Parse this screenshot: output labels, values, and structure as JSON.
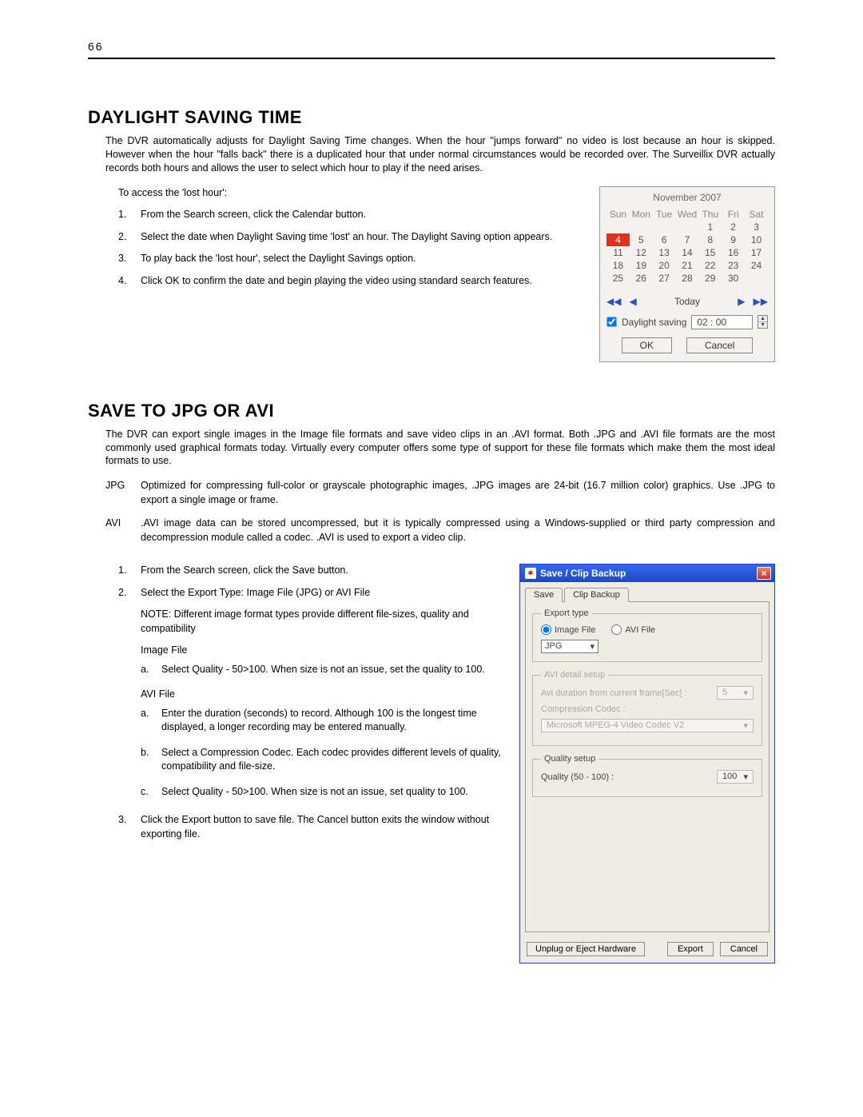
{
  "page_number": "66",
  "section1": {
    "title": "DAYLIGHT SAVING TIME",
    "intro": "The DVR automatically adjusts for Daylight Saving Time changes.  When the hour \"jumps forward\" no video is lost because an hour is skipped.  However when the hour \"falls back\" there is a duplicated hour that under normal circumstances would be recorded over.  The Surveillix DVR actually records both hours and allows the user to select which hour to play if the need arises.",
    "lead": "To access the 'lost hour':",
    "steps": [
      "From the Search screen, click the Calendar button.",
      "Select the date when Daylight Saving time 'lost' an hour. The Daylight Saving option appears.",
      "To play back the 'lost hour', select the Daylight Savings option.",
      "Click OK to confirm the date and begin playing the video using standard search features."
    ]
  },
  "calendar": {
    "month_label": "November 2007",
    "day_headers": [
      "Sun",
      "Mon",
      "Tue",
      "Wed",
      "Thu",
      "Fri",
      "Sat"
    ],
    "rows": [
      [
        "",
        "",
        "",
        "",
        "1",
        "2",
        "3"
      ],
      [
        "4",
        "5",
        "6",
        "7",
        "8",
        "9",
        "10"
      ],
      [
        "11",
        "12",
        "13",
        "14",
        "15",
        "16",
        "17"
      ],
      [
        "18",
        "19",
        "20",
        "21",
        "22",
        "23",
        "24"
      ],
      [
        "25",
        "26",
        "27",
        "28",
        "29",
        "30",
        ""
      ]
    ],
    "selected": "4",
    "today_label": "Today",
    "nav_first": "◀◀",
    "nav_prev": "◀",
    "nav_next": "▶",
    "nav_last": "▶▶",
    "dst_checkbox_label": "Daylight saving",
    "dst_checked": true,
    "time_value": "02 : 00",
    "ok": "OK",
    "cancel": "Cancel",
    "colors": {
      "panel_bg": "#f4f2ee",
      "selected_bg": "#e03020",
      "selected_fg": "#ffffff",
      "nav_color": "#2a4fbf"
    }
  },
  "section2": {
    "title": "SAVE TO JPG OR AVI",
    "intro": "The DVR can export single images in the Image file formats and save video clips in an .AVI format.  Both .JPG and .AVI file formats are the most commonly used graphical formats today.  Virtually every computer offers some type of support for these file formats which make them the most ideal formats to use.",
    "terms": [
      {
        "term": "JPG",
        "desc": "Optimized for compressing full-color or grayscale photographic images, .JPG images are 24-bit (16.7 million color) graphics. Use .JPG to export a single image or frame."
      },
      {
        "term": "AVI",
        "desc": ".AVI image data can be stored uncompressed, but it is typically compressed using a Windows-supplied or third party compression and decompression module called a codec.  .AVI is used to export a video clip."
      }
    ],
    "steps12": [
      "From the Search screen, click  the Save button.",
      "Select the Export Type: Image File (JPG) or AVI File"
    ],
    "note": "NOTE: Different image format types provide different file-sizes, quality and compatibility",
    "imagefile_heading": "Image File",
    "imagefile_items": [
      "Select Quality  - 50>100.  When size is not an issue, set the quality to 100."
    ],
    "avifile_heading": "AVI File",
    "avifile_items": [
      "Enter the duration (seconds) to record.  Although 100 is the longest time displayed, a longer recording may be entered manually.",
      "Select a Compression Codec.  Each codec provides different levels of quality, compatibility and file-size.",
      "Select Quality  - 50>100.  When size is not an issue, set quality to 100."
    ],
    "step3": "Click the Export button to save file.  The Cancel button exits the window without exporting file."
  },
  "dialog": {
    "title": "Save / Clip Backup",
    "tabs": [
      "Save",
      "Clip Backup"
    ],
    "active_tab": 0,
    "groups": {
      "export_type": {
        "legend": "Export type",
        "radio_image": "Image File",
        "radio_avi": "AVI File",
        "selected": "image",
        "format_value": "JPG"
      },
      "avi_detail": {
        "legend": "AVI detail setup",
        "duration_label": "Avi duration from current frame[Sec] :",
        "duration_value": "5",
        "codec_label": "Compression Codec :",
        "codec_value": "Microsoft MPEG-4 Video Codec V2",
        "disabled": true
      },
      "quality": {
        "legend": "Quality setup",
        "label": "Quality (50 - 100) :",
        "value": "100"
      }
    },
    "buttons": {
      "eject": "Unplug or Eject Hardware",
      "export": "Export",
      "cancel": "Cancel"
    },
    "colors": {
      "titlebar_from": "#3668e8",
      "titlebar_to": "#1a49c8",
      "close_bg": "#d03020",
      "panel_bg": "#efece4"
    }
  }
}
